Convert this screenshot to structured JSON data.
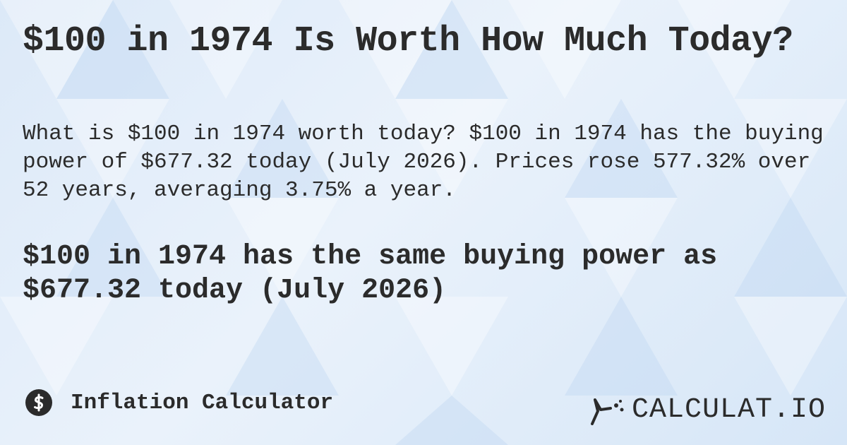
{
  "header": {
    "title": "$100 in 1974 Is Worth How Much Today?"
  },
  "description": "What is $100 in 1974 worth today? $100 in 1974 has the buying power of $677.32 today (July 2026). Prices rose 577.32% over 52 years, averaging 3.75% a year.",
  "highlight": "$100 in 1974 has the same buying power as $677.32 today (July 2026)",
  "footer": {
    "category": "Inflation Calculator",
    "brand": "CALCULAT.IO"
  }
}
